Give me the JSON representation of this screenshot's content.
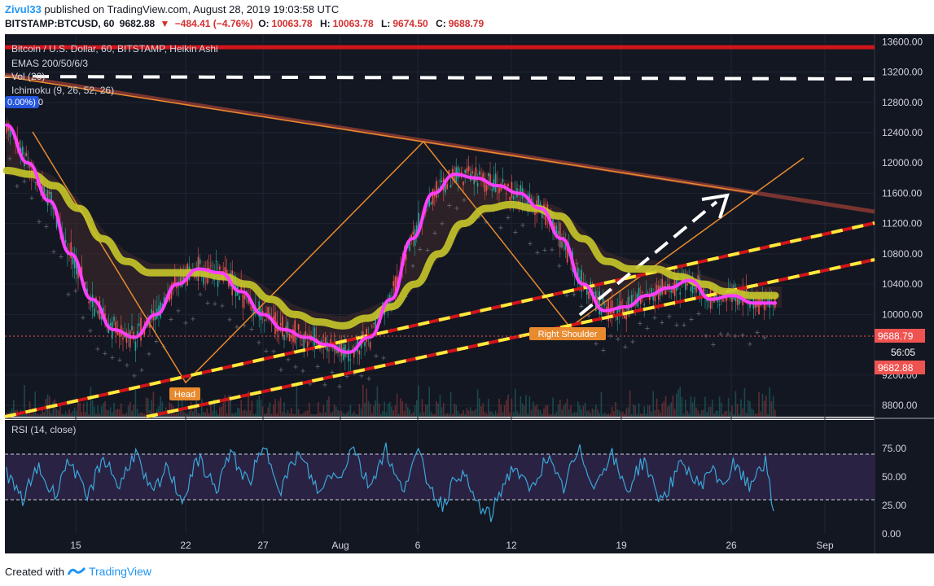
{
  "header": {
    "user": "Zivul33",
    "published_text": "published on TradingView.com, August 28, 2019 19:03:58 UTC",
    "symbol": "BITSTAMP:BTCUSD, 60",
    "last": "9682.88",
    "change": "−484.41 (−4.76%)",
    "o_label": "O:",
    "o_value": "10063.78",
    "h_label": "H:",
    "h_value": "10063.78",
    "l_label": "L:",
    "l_value": "9674.50",
    "c_label": "C:",
    "c_value": "9688.79"
  },
  "legend": {
    "title": "Bitcoin / U.S. Dollar, 60, BITSTAMP, Heikin Ashi",
    "emas": "EMAS 200/50/6/3",
    "vol": "Vol (20)",
    "ichimoku": "Ichimoku (9, 26, 52, 26)",
    "badge": "0.00%) 0"
  },
  "annotations": {
    "head": "Head",
    "right_shoulder": "Right Shoulder"
  },
  "price_badges": {
    "close": "9688.79",
    "countdown": "56:05",
    "last": "9682.88"
  },
  "colors": {
    "background": "#131722",
    "up": "#26a69a",
    "down": "#ef5350",
    "ema_fast": "#ff3fff",
    "ema_slow": "#c6c62a",
    "red_line": "#d0151b",
    "yellow_dash": "#ffeb3b",
    "orange_line": "#e88a2e",
    "brown_line": "#8a3a33",
    "rsi_line": "#3aa7d8",
    "rsi_band": "#2d2347"
  },
  "chart_data": [
    {
      "type": "line",
      "title": "Bitcoin / U.S. Dollar, 60, BITSTAMP, Heikin Ashi",
      "x_tick_labels": [
        "15",
        "22",
        "27",
        "Aug",
        "6",
        "12",
        "19",
        "26",
        "Sep"
      ],
      "y_tick_labels": [
        "13600.00",
        "13200.00",
        "12800.00",
        "12400.00",
        "12000.00",
        "11600.00",
        "11200.00",
        "10800.00",
        "10400.00",
        "10000.00",
        "9200.00",
        "8800.00"
      ],
      "ylim": [
        8650,
        13700
      ],
      "series": [
        {
          "values": [
            12500,
            12000,
            11500,
            10800,
            10200,
            9800,
            9700,
            10000,
            10400,
            10600,
            10550,
            10300,
            10000,
            9800,
            9700,
            9600,
            9500,
            9700,
            10200,
            11000,
            11600,
            11850,
            11800,
            11700,
            11600,
            11400,
            11000,
            10400,
            10050,
            10100,
            10250,
            10350,
            10450,
            10200,
            10250,
            10150,
            10150
          ]
        },
        {
          "values": [
            11900,
            11850,
            11700,
            11400,
            11000,
            10700,
            10550,
            10550,
            10550,
            10500,
            10400,
            10200,
            10000,
            9900,
            9850,
            9950,
            10100,
            10400,
            10800,
            11200,
            11400,
            11450,
            11400,
            11300,
            11000,
            10700,
            10600,
            10600,
            10500,
            10400,
            10300,
            10250,
            10250
          ]
        }
      ],
      "price_levels": [
        9688.79,
        9682.88
      ]
    },
    {
      "type": "line",
      "title": "RSI (14, close)",
      "y_tick_labels": [
        "75.00",
        "50.00",
        "25.00",
        "0.00"
      ],
      "ylim": [
        0,
        100
      ],
      "bands": [
        30,
        70
      ],
      "series": [
        {
          "values": [
            55,
            40,
            30,
            45,
            60,
            42,
            35,
            55,
            65,
            45,
            30,
            50,
            68,
            55,
            40,
            60,
            72,
            50,
            35,
            45,
            60,
            40,
            30,
            55,
            65,
            50,
            38,
            60,
            70,
            55,
            45,
            62,
            74,
            58,
            40,
            55,
            70,
            60,
            45,
            35,
            55,
            48,
            62,
            80,
            55,
            42,
            60,
            75,
            52,
            38,
            58,
            70,
            50,
            35,
            25,
            40,
            55,
            45,
            30,
            20,
            15,
            35,
            50,
            60,
            45,
            38,
            55,
            68,
            50,
            40,
            60,
            72,
            55,
            42,
            60,
            70,
            50,
            38,
            55,
            65,
            45,
            30,
            40,
            55,
            62,
            48,
            42,
            58,
            50,
            45,
            60,
            52,
            40,
            58,
            62,
            20
          ]
        }
      ]
    }
  ]
}
